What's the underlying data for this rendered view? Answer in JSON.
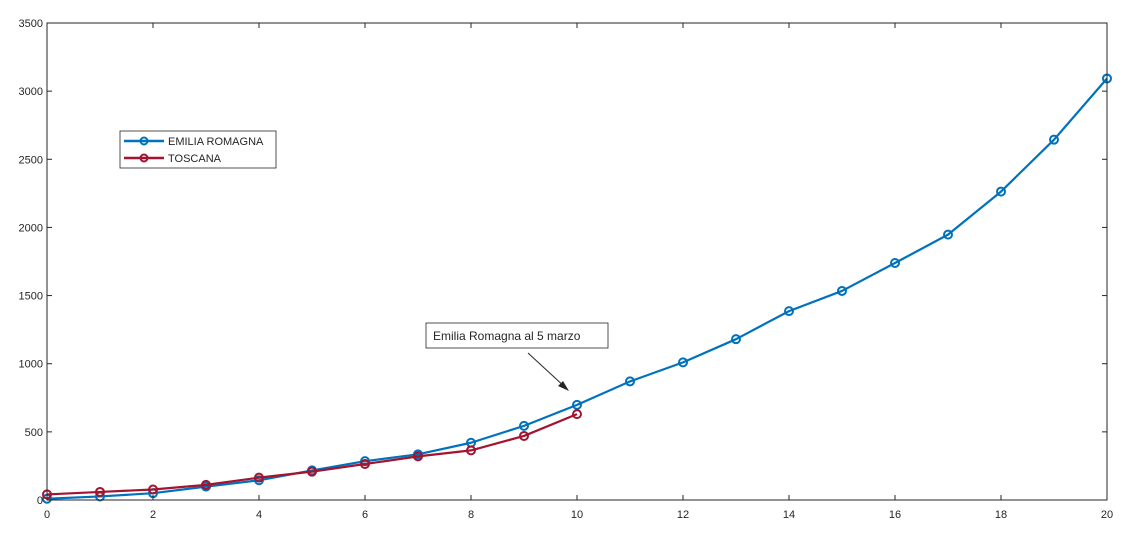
{
  "chart_data": {
    "type": "line",
    "x": [
      0,
      1,
      2,
      3,
      4,
      5,
      6,
      7,
      8,
      9,
      10,
      11,
      12,
      13,
      14,
      15,
      16,
      17,
      18,
      19,
      20
    ],
    "series": [
      {
        "name": "EMILIA ROMAGNA",
        "color": "#0072BD",
        "marker": "circle",
        "x": [
          0,
          1,
          2,
          3,
          4,
          5,
          6,
          7,
          8,
          9,
          10,
          11,
          12,
          13,
          14,
          15,
          16,
          17,
          18,
          19,
          20
        ],
        "values": [
          9,
          26,
          50,
          98,
          145,
          217,
          285,
          335,
          420,
          544,
          698,
          870,
          1010,
          1180,
          1386,
          1534,
          1739,
          1947,
          2263,
          2644,
          3093
        ]
      },
      {
        "name": "TOSCANA",
        "color": "#A2142F",
        "marker": "circle",
        "x": [
          0,
          1,
          2,
          3,
          4,
          5,
          6,
          7,
          8,
          9,
          10
        ],
        "values": [
          41,
          59,
          77,
          111,
          164,
          208,
          264,
          320,
          364,
          470,
          630
        ]
      }
    ],
    "xlim": [
      0,
      20
    ],
    "ylim": [
      0,
      3500
    ],
    "xticks": [
      0,
      2,
      4,
      6,
      8,
      10,
      12,
      14,
      16,
      18,
      20
    ],
    "yticks": [
      0,
      500,
      1000,
      1500,
      2000,
      2500,
      3000,
      3500
    ],
    "title": "",
    "xlabel": "",
    "ylabel": "",
    "grid": false,
    "legend_position": "upper-left",
    "annotation": {
      "text": "Emilia Romagna al 5 marzo",
      "target_x": 10,
      "target_y": 698
    }
  }
}
